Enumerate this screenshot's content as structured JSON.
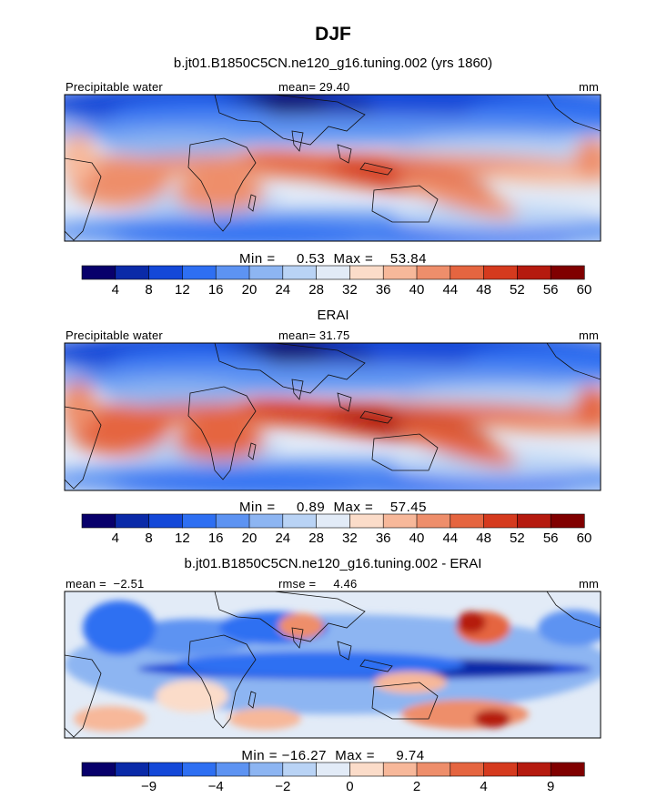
{
  "page": {
    "title": "DJF",
    "subtitle_1": "b.jt01.B1850C5CN.ne120_g16.tuning.002 (yrs 1860)",
    "subtitle_2": "ERAI",
    "subtitle_3": "b.jt01.B1850C5CN.ne120_g16.tuning.002 - ERAI"
  },
  "colors": {
    "seq_levels": [
      "#08006b",
      "#0a2aa8",
      "#1448d8",
      "#2e6ff2",
      "#5d93f2",
      "#8db5f2",
      "#b9d3f5",
      "#e2ebf7",
      "#fbdcc9",
      "#f7b89a",
      "#ee8e6b",
      "#e56540",
      "#d53a1e",
      "#b51a0f",
      "#800000"
    ],
    "diff_levels": [
      "#08006b",
      "#0a2aa8",
      "#1448d8",
      "#2e6ff2",
      "#5d93f2",
      "#8db5f2",
      "#b9d3f5",
      "#e2ebf7",
      "#fbdcc9",
      "#f7b89a",
      "#ee8e6b",
      "#e56540",
      "#d53a1e",
      "#b51a0f",
      "#800000"
    ]
  },
  "chart_data": [
    {
      "type": "heatmap",
      "name": "model",
      "variable_label": "Precipitable water",
      "mean_text": "mean=  29.40",
      "mean": 29.4,
      "units": "mm",
      "min_max_text": "Min =     0.53  Max =    53.84",
      "min": 0.53,
      "max": 53.84,
      "colorbar_ticks": [
        "4",
        "8",
        "12",
        "16",
        "20",
        "24",
        "28",
        "32",
        "36",
        "40",
        "44",
        "48",
        "52",
        "56",
        "60"
      ],
      "colorbar_levels": [
        4,
        8,
        12,
        16,
        20,
        24,
        28,
        32,
        36,
        40,
        44,
        48,
        52,
        56,
        60
      ]
    },
    {
      "type": "heatmap",
      "name": "obs",
      "variable_label": "Precipitable water",
      "mean_text": "mean=  31.75",
      "mean": 31.75,
      "units": "mm",
      "min_max_text": "Min =     0.89  Max =    57.45",
      "min": 0.89,
      "max": 57.45,
      "colorbar_ticks": [
        "4",
        "8",
        "12",
        "16",
        "20",
        "24",
        "28",
        "32",
        "36",
        "40",
        "44",
        "48",
        "52",
        "56",
        "60"
      ],
      "colorbar_levels": [
        4,
        8,
        12,
        16,
        20,
        24,
        28,
        32,
        36,
        40,
        44,
        48,
        52,
        56,
        60
      ]
    },
    {
      "type": "heatmap",
      "name": "difference",
      "mean_text": "mean =  −2.51",
      "mean": -2.51,
      "rmse_text": "rmse =     4.46",
      "rmse": 4.46,
      "units": "mm",
      "min_max_text": "Min = −16.27  Max =     9.74",
      "min": -16.27,
      "max": 9.74,
      "colorbar_ticks": [
        "−9",
        "−4",
        "−2",
        "0",
        "2",
        "4",
        "9"
      ],
      "colorbar_levels": [
        -12,
        -9,
        -6,
        -4,
        -3,
        -2,
        -1,
        0,
        1,
        2,
        3,
        4,
        6,
        9,
        12
      ]
    }
  ]
}
